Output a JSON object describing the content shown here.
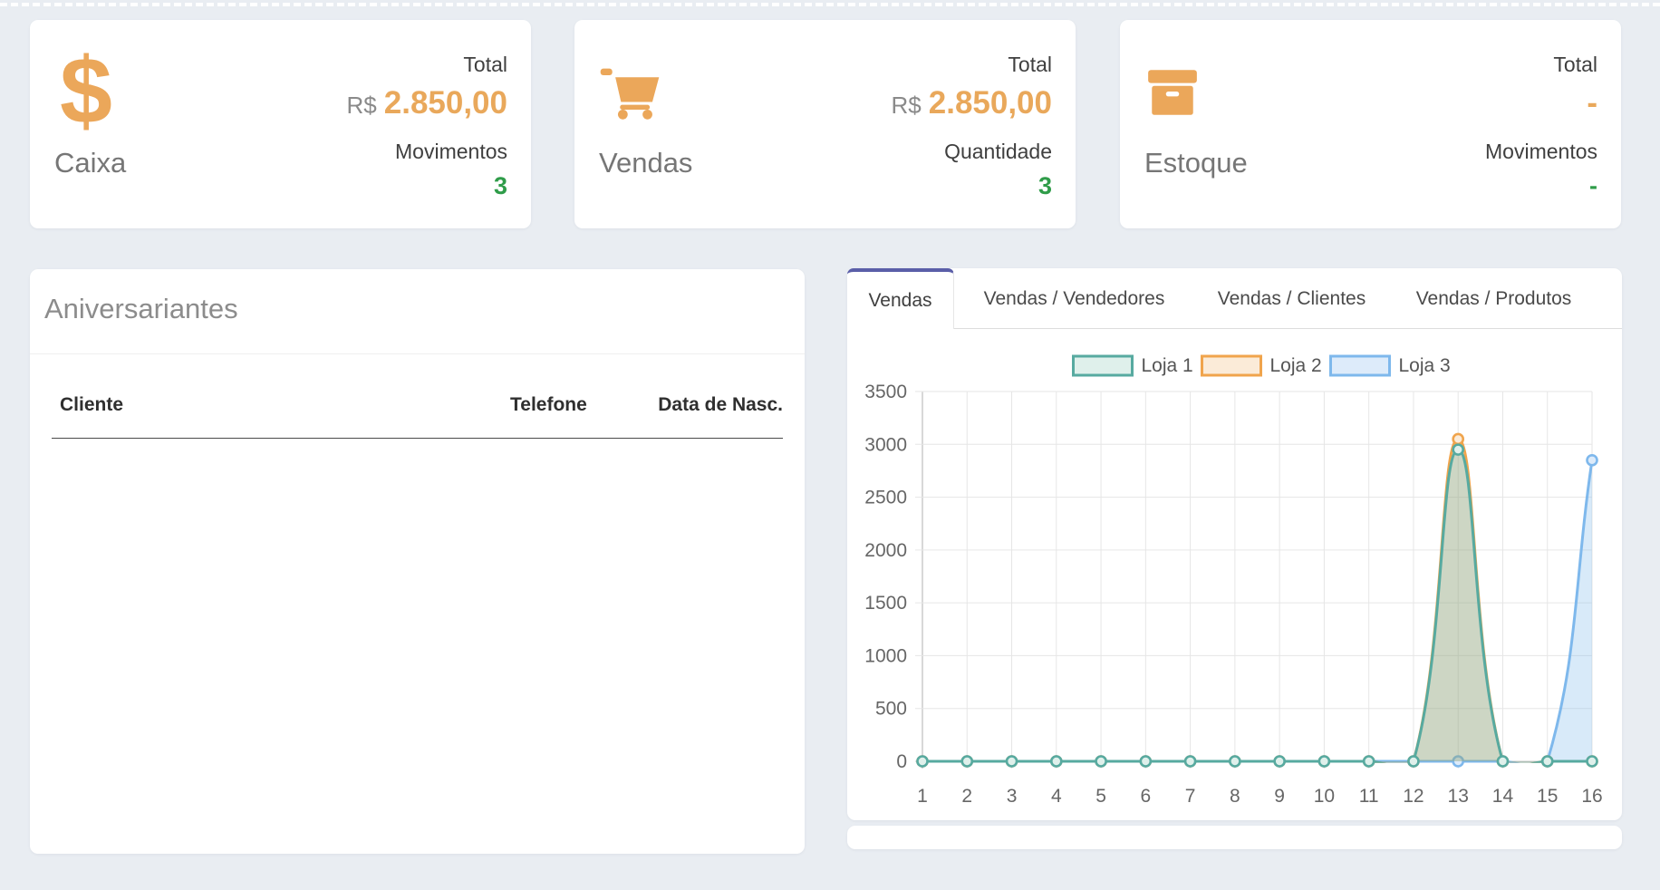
{
  "page": {
    "background": "#E9EDF2"
  },
  "cards": [
    {
      "label": "Caixa",
      "icon": "dollar-icon",
      "rows": [
        {
          "label": "Total",
          "prefix": "R$",
          "value": "2.850,00"
        },
        {
          "label": "Movimentos",
          "value": "3"
        }
      ]
    },
    {
      "label": "Vendas",
      "icon": "cart-icon",
      "rows": [
        {
          "label": "Total",
          "prefix": "R$",
          "value": "2.850,00"
        },
        {
          "label": "Quantidade",
          "value": "3"
        }
      ]
    },
    {
      "label": "Estoque",
      "icon": "box-icon",
      "rows": [
        {
          "label": "Total",
          "prefix": "",
          "value": "-"
        },
        {
          "label": "Movimentos",
          "value": "-"
        }
      ]
    }
  ],
  "birthdays": {
    "title": "Aniversariantes",
    "columns": [
      "Cliente",
      "Telefone",
      "Data de Nasc."
    ],
    "rows": []
  },
  "sales_panel": {
    "tabs": [
      {
        "label": "Vendas",
        "active": true
      },
      {
        "label": "Vendas / Vendedores",
        "active": false
      },
      {
        "label": "Vendas / Clientes",
        "active": false
      },
      {
        "label": "Vendas / Produtos",
        "active": false
      }
    ],
    "accent_color": "#5A5EA8"
  },
  "chart_data": {
    "type": "area",
    "title": "",
    "xlabel": "",
    "ylabel": "",
    "categories": [
      "1",
      "2",
      "3",
      "4",
      "5",
      "6",
      "7",
      "8",
      "9",
      "10",
      "11",
      "12",
      "13",
      "14",
      "15",
      "16"
    ],
    "ylim": [
      0,
      3500
    ],
    "y_step": 500,
    "grid": true,
    "legend_position": "top-center",
    "series": [
      {
        "name": "Loja 1",
        "line_color": "#57AAA0",
        "fill_color": "rgba(87,170,160,0.28)",
        "point_fill": "#DFF0EB",
        "values": [
          0,
          0,
          0,
          0,
          0,
          0,
          0,
          0,
          0,
          0,
          0,
          0,
          2950,
          0,
          0,
          0
        ]
      },
      {
        "name": "Loja 2",
        "line_color": "#F0A44C",
        "fill_color": "rgba(240,164,76,0.25)",
        "point_fill": "#FBEBD8",
        "values": [
          0,
          0,
          0,
          0,
          0,
          0,
          0,
          0,
          0,
          0,
          0,
          0,
          3050,
          0,
          0,
          0
        ]
      },
      {
        "name": "Loja 3",
        "line_color": "#7EB8EC",
        "fill_color": "rgba(126,184,236,0.30)",
        "point_fill": "#DDEBFA",
        "values": [
          0,
          0,
          0,
          0,
          0,
          0,
          0,
          0,
          0,
          0,
          0,
          0,
          0,
          0,
          0,
          2850
        ]
      }
    ],
    "axis_text_color": "#666666",
    "grid_color": "#E6E6E6",
    "axis_line_color": "#B0B0B0"
  }
}
